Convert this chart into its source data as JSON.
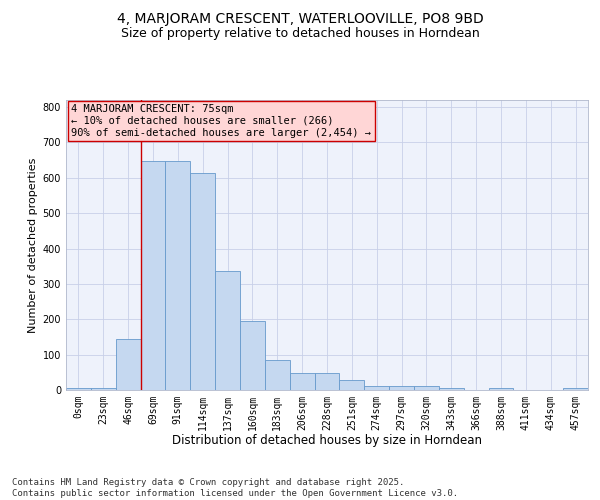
{
  "title": "4, MARJORAM CRESCENT, WATERLOOVILLE, PO8 9BD",
  "subtitle": "Size of property relative to detached houses in Horndean",
  "xlabel": "Distribution of detached houses by size in Horndean",
  "ylabel": "Number of detached properties",
  "categories": [
    "0sqm",
    "23sqm",
    "46sqm",
    "69sqm",
    "91sqm",
    "114sqm",
    "137sqm",
    "160sqm",
    "183sqm",
    "206sqm",
    "228sqm",
    "251sqm",
    "274sqm",
    "297sqm",
    "320sqm",
    "343sqm",
    "366sqm",
    "388sqm",
    "411sqm",
    "434sqm",
    "457sqm"
  ],
  "bar_values": [
    5,
    5,
    145,
    648,
    648,
    613,
    337,
    195,
    84,
    47,
    47,
    28,
    10,
    10,
    10,
    5,
    0,
    5,
    0,
    0,
    5
  ],
  "bar_color": "#c5d8f0",
  "bar_edge_color": "#6699cc",
  "vline_x_index": 3,
  "vline_color": "#cc0000",
  "annotation_text": "4 MARJORAM CRESCENT: 75sqm\n← 10% of detached houses are smaller (266)\n90% of semi-detached houses are larger (2,454) →",
  "annotation_box_color": "#ffd6d6",
  "annotation_border_color": "#cc0000",
  "ylim": [
    0,
    820
  ],
  "yticks": [
    0,
    100,
    200,
    300,
    400,
    500,
    600,
    700,
    800
  ],
  "bg_color": "#eef2fb",
  "grid_color": "#c8d0e8",
  "footer": "Contains HM Land Registry data © Crown copyright and database right 2025.\nContains public sector information licensed under the Open Government Licence v3.0.",
  "title_fontsize": 10,
  "subtitle_fontsize": 9,
  "xlabel_fontsize": 8.5,
  "ylabel_fontsize": 8,
  "tick_fontsize": 7,
  "annotation_fontsize": 7.5,
  "footer_fontsize": 6.5
}
